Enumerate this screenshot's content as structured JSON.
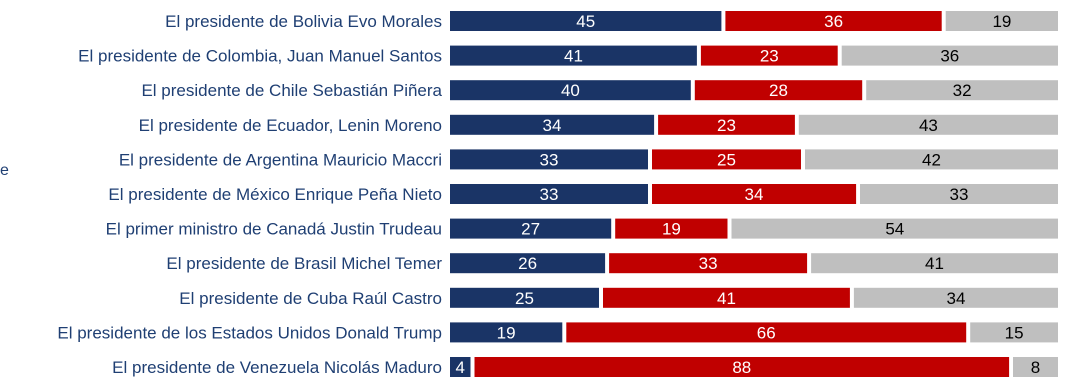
{
  "edge_mark": "e",
  "colors": {
    "series1": "#1a3466",
    "series2": "#c00000",
    "series3": "#bfbfbf",
    "label_text": "#1f3f73",
    "value_text_dark_bar": "#ffffff",
    "value_text_light_bar": "#000000"
  },
  "chart_data": {
    "type": "bar",
    "orientation": "horizontal",
    "stacked": true,
    "categories": [
      "El presidente de Bolivia Evo Morales",
      "El presidente de Colombia, Juan Manuel Santos",
      "El presidente de Chile Sebastián Piñera",
      "El presidente de Ecuador, Lenin Moreno",
      "El presidente de Argentina Mauricio Maccri",
      "El presidente de México Enrique Peña Nieto",
      "El primer ministro de Canadá Justin Trudeau",
      "El presidente de Brasil Michel Temer",
      "El presidente de Cuba Raúl Castro",
      "El presidente de los Estados Unidos Donald Trump",
      "El presidente de Venezuela Nicolás Maduro"
    ],
    "series": [
      {
        "values": [
          45,
          41,
          40,
          34,
          33,
          33,
          27,
          26,
          25,
          19,
          4
        ]
      },
      {
        "values": [
          36,
          23,
          28,
          23,
          25,
          34,
          19,
          33,
          41,
          66,
          88
        ]
      },
      {
        "values": [
          19,
          36,
          32,
          43,
          42,
          33,
          54,
          41,
          34,
          15,
          8
        ]
      }
    ],
    "xlim": [
      0,
      100
    ],
    "grid": false,
    "legend": "none"
  }
}
